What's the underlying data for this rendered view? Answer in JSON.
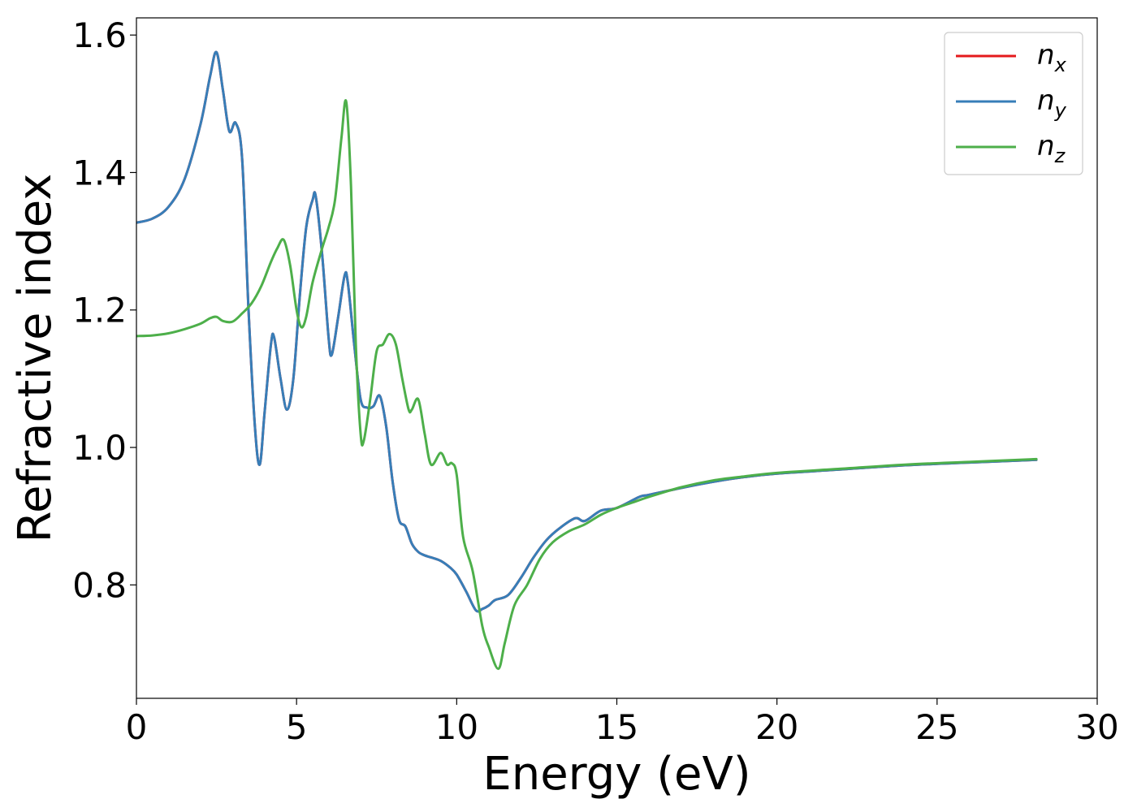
{
  "chart_data": {
    "type": "line",
    "xlabel": "Energy (eV)",
    "ylabel": "Refractive index",
    "xlim": [
      0,
      30
    ],
    "ylim": [
      0.635,
      1.625
    ],
    "xticks": [
      "0",
      "5",
      "10",
      "15",
      "20",
      "25",
      "30"
    ],
    "xtick_values": [
      0,
      5,
      10,
      15,
      20,
      25,
      30
    ],
    "yticks": [
      "0.8",
      "1.0",
      "1.2",
      "1.4",
      "1.6"
    ],
    "ytick_values": [
      0.8,
      1.0,
      1.2,
      1.4,
      1.6
    ],
    "grid": false,
    "legend_position": "top-right",
    "series": [
      {
        "name": "n",
        "sub": "x",
        "color": "#e41a1c",
        "x": [
          0,
          0.5,
          1.0,
          1.5,
          2.0,
          2.3,
          2.5,
          2.7,
          2.9,
          3.1,
          3.3,
          3.5,
          3.7,
          3.85,
          4.0,
          4.2,
          4.3,
          4.5,
          4.7,
          4.9,
          5.1,
          5.3,
          5.5,
          5.6,
          5.8,
          6.0,
          6.1,
          6.3,
          6.5,
          6.6,
          6.8,
          7.0,
          7.2,
          7.4,
          7.6,
          7.8,
          8.0,
          8.2,
          8.4,
          8.6,
          8.8,
          9.0,
          9.2,
          9.5,
          9.8,
          10.0,
          10.3,
          10.6,
          10.8,
          11.0,
          11.2,
          11.6,
          12.0,
          12.4,
          12.8,
          13.2,
          13.7,
          14.0,
          14.5,
          15.0,
          15.7,
          16.0,
          17.0,
          18.0,
          19.0,
          20.0,
          22.0,
          24.0,
          26.0,
          28.1
        ],
        "y": [
          1.327,
          1.333,
          1.35,
          1.39,
          1.47,
          1.54,
          1.575,
          1.52,
          1.46,
          1.472,
          1.42,
          1.2,
          1.03,
          0.975,
          1.05,
          1.15,
          1.16,
          1.1,
          1.055,
          1.1,
          1.22,
          1.32,
          1.36,
          1.365,
          1.28,
          1.16,
          1.135,
          1.19,
          1.25,
          1.24,
          1.15,
          1.07,
          1.058,
          1.06,
          1.075,
          1.03,
          0.95,
          0.895,
          0.885,
          0.86,
          0.848,
          0.843,
          0.84,
          0.835,
          0.825,
          0.815,
          0.79,
          0.763,
          0.765,
          0.77,
          0.778,
          0.785,
          0.81,
          0.84,
          0.865,
          0.882,
          0.897,
          0.893,
          0.908,
          0.912,
          0.928,
          0.931,
          0.941,
          0.95,
          0.957,
          0.962,
          0.968,
          0.974,
          0.978,
          0.982
        ]
      },
      {
        "name": "n",
        "sub": "y",
        "color": "#377eb8",
        "x": [
          0,
          0.5,
          1.0,
          1.5,
          2.0,
          2.3,
          2.5,
          2.7,
          2.9,
          3.1,
          3.3,
          3.5,
          3.7,
          3.85,
          4.0,
          4.2,
          4.3,
          4.5,
          4.7,
          4.9,
          5.1,
          5.3,
          5.5,
          5.6,
          5.8,
          6.0,
          6.1,
          6.3,
          6.5,
          6.6,
          6.8,
          7.0,
          7.2,
          7.4,
          7.6,
          7.8,
          8.0,
          8.2,
          8.4,
          8.6,
          8.8,
          9.0,
          9.2,
          9.5,
          9.8,
          10.0,
          10.3,
          10.6,
          10.8,
          11.0,
          11.2,
          11.6,
          12.0,
          12.4,
          12.8,
          13.2,
          13.7,
          14.0,
          14.5,
          15.0,
          15.7,
          16.0,
          17.0,
          18.0,
          19.0,
          20.0,
          22.0,
          24.0,
          26.0,
          28.1
        ],
        "y": [
          1.327,
          1.333,
          1.35,
          1.39,
          1.47,
          1.54,
          1.575,
          1.52,
          1.46,
          1.472,
          1.42,
          1.2,
          1.03,
          0.975,
          1.05,
          1.15,
          1.16,
          1.1,
          1.055,
          1.1,
          1.22,
          1.32,
          1.36,
          1.365,
          1.28,
          1.16,
          1.135,
          1.19,
          1.25,
          1.24,
          1.15,
          1.07,
          1.058,
          1.06,
          1.075,
          1.03,
          0.95,
          0.895,
          0.885,
          0.86,
          0.848,
          0.843,
          0.84,
          0.835,
          0.825,
          0.815,
          0.79,
          0.763,
          0.765,
          0.77,
          0.778,
          0.785,
          0.81,
          0.84,
          0.865,
          0.882,
          0.897,
          0.893,
          0.908,
          0.912,
          0.928,
          0.931,
          0.941,
          0.95,
          0.957,
          0.962,
          0.968,
          0.974,
          0.978,
          0.982
        ]
      },
      {
        "name": "n",
        "sub": "z",
        "color": "#4daf4a",
        "x": [
          0,
          0.5,
          1.0,
          1.5,
          2.0,
          2.3,
          2.5,
          2.7,
          3.0,
          3.3,
          3.6,
          3.9,
          4.2,
          4.4,
          4.6,
          4.8,
          5.0,
          5.15,
          5.3,
          5.5,
          5.8,
          6.0,
          6.2,
          6.4,
          6.55,
          6.7,
          6.85,
          7.0,
          7.1,
          7.3,
          7.5,
          7.7,
          7.9,
          8.1,
          8.3,
          8.5,
          8.6,
          8.8,
          9.0,
          9.2,
          9.5,
          9.7,
          9.85,
          10.0,
          10.2,
          10.5,
          10.8,
          11.0,
          11.3,
          11.5,
          11.8,
          12.2,
          12.6,
          13.0,
          13.5,
          14.0,
          14.5,
          15.0,
          15.5,
          16.0,
          17.0,
          18.0,
          19.0,
          20.0,
          22.0,
          24.0,
          26.0,
          28.1
        ],
        "y": [
          1.162,
          1.163,
          1.166,
          1.172,
          1.18,
          1.188,
          1.19,
          1.184,
          1.183,
          1.195,
          1.21,
          1.235,
          1.27,
          1.29,
          1.302,
          1.265,
          1.2,
          1.175,
          1.19,
          1.24,
          1.29,
          1.32,
          1.36,
          1.45,
          1.503,
          1.38,
          1.15,
          1.02,
          1.01,
          1.07,
          1.14,
          1.15,
          1.165,
          1.15,
          1.1,
          1.055,
          1.055,
          1.07,
          1.02,
          0.975,
          0.992,
          0.975,
          0.977,
          0.96,
          0.87,
          0.82,
          0.74,
          0.71,
          0.678,
          0.715,
          0.77,
          0.8,
          0.838,
          0.862,
          0.878,
          0.888,
          0.902,
          0.912,
          0.92,
          0.928,
          0.942,
          0.952,
          0.958,
          0.963,
          0.969,
          0.975,
          0.979,
          0.983
        ]
      }
    ]
  }
}
